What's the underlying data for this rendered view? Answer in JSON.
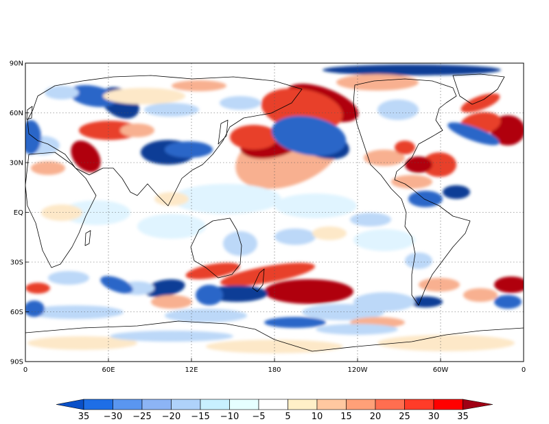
{
  "map": {
    "projection": "cylindrical equidistant",
    "lat_labels": [
      "90N",
      "60N",
      "30N",
      "EQ",
      "30S",
      "60S",
      "90S"
    ],
    "lon_labels": [
      "0",
      "60E",
      "12E",
      "180",
      "120W",
      "60W",
      "0"
    ],
    "grid": "dotted",
    "coastlines": true
  },
  "colorbar": {
    "labels": [
      "35",
      "−30",
      "−25",
      "−20",
      "−15",
      "−10",
      "−5",
      "5",
      "10",
      "15",
      "20",
      "25",
      "30",
      "35"
    ],
    "colors": [
      "#0a50c8",
      "#1e6ee6",
      "#5a96f0",
      "#8cb4f5",
      "#afd2fa",
      "#c8f0ff",
      "#e6ffff",
      "#ffffff",
      "#fff0c8",
      "#ffc8a0",
      "#ffa078",
      "#ff6e50",
      "#ff3c28",
      "#ff0000",
      "#a00014"
    ]
  },
  "palette": {
    "dark_blue": "#0a3c96",
    "blue": "#2c66c8",
    "mid_blue": "#7fa8ee",
    "light_blue": "#bcd8f8",
    "pale_cyan": "#e0f4ff",
    "pale_orange": "#fde8c8",
    "light_red": "#f8b090",
    "red": "#e8402a",
    "dark_red": "#b00010"
  }
}
